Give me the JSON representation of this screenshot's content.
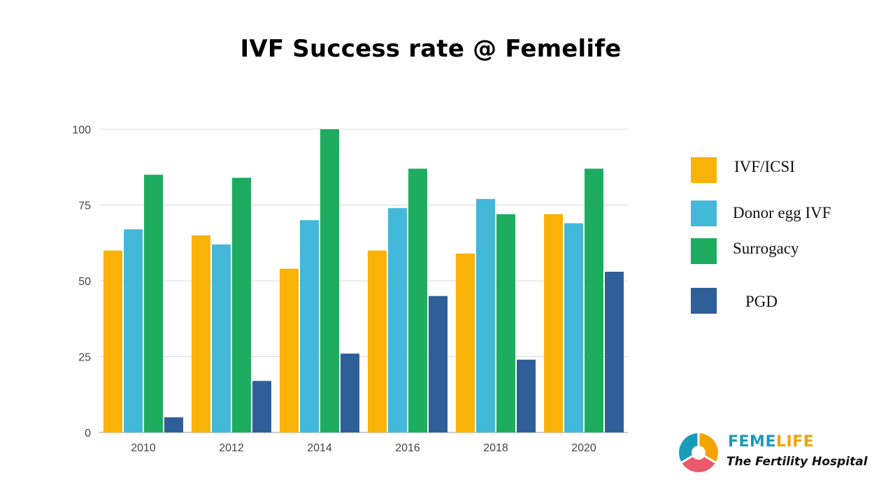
{
  "chart_data": {
    "type": "bar",
    "title": "IVF Success rate @ Femelife",
    "categories": [
      "2010",
      "2012",
      "2014",
      "2016",
      "2018",
      "2020"
    ],
    "series": [
      {
        "name": "IVF/ICSI",
        "color": "#f9b208",
        "values": [
          60,
          65,
          54,
          60,
          59,
          72
        ]
      },
      {
        "name": "Donor egg IVF",
        "color": "#43b8d8",
        "values": [
          67,
          62,
          70,
          74,
          77,
          69
        ]
      },
      {
        "name": "Surrogacy",
        "color": "#1eac61",
        "values": [
          85,
          84,
          100,
          87,
          72,
          87
        ]
      },
      {
        "name": "PGD",
        "color": "#2e5f98",
        "values": [
          5,
          17,
          26,
          45,
          24,
          53
        ]
      }
    ],
    "yticks": [
      0,
      25,
      50,
      75,
      100
    ],
    "ylim": [
      0,
      100
    ],
    "xlabel": "",
    "ylabel": "",
    "grid": true,
    "legend_position": "right"
  },
  "logo": {
    "name_part1": "FEME",
    "name_part2": "LIFE",
    "tagline": "The Fertility Hospital",
    "icon": "femelife-logo-icon"
  }
}
